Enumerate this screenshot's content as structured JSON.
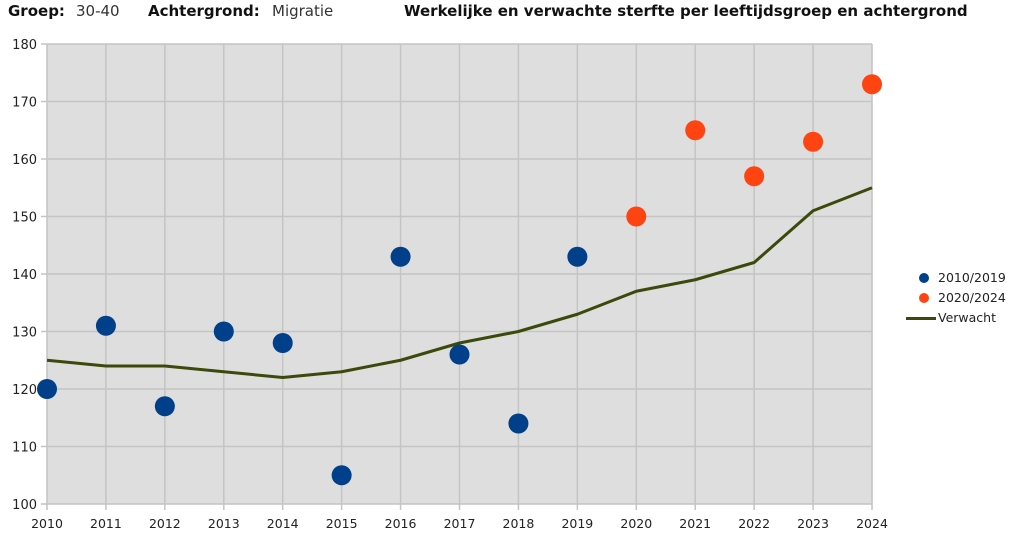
{
  "header": {
    "group_label": "Groep:",
    "group_value": "30-40",
    "background_label": "Achtergrond:",
    "background_value": "Migratie",
    "title": "Werkelijke en verwachte sterfte per leeftijdsgroep en achtergrond"
  },
  "colors": {
    "series_2010_2019": "#003F8A",
    "series_2020_2024": "#FF4411",
    "expected_line": "#3B4A0A",
    "plot_background": "#DEDEDE",
    "grid": "#C4C4C4"
  },
  "legend": {
    "items": [
      {
        "label": "2010/2019",
        "type": "dot",
        "color": "#003F8A"
      },
      {
        "label": "2020/2024",
        "type": "dot",
        "color": "#FF4411"
      },
      {
        "label": "Verwacht",
        "type": "line",
        "color": "#3B4A0A"
      }
    ]
  },
  "chart_data": {
    "type": "scatter",
    "title": "Werkelijke en verwachte sterfte per leeftijdsgroep en achtergrond",
    "subtitle": "Groep: 30-40  Achtergrond: Migratie",
    "xlabel": "",
    "ylabel": "",
    "x": [
      2010,
      2011,
      2012,
      2013,
      2014,
      2015,
      2016,
      2017,
      2018,
      2019,
      2020,
      2021,
      2022,
      2023,
      2024
    ],
    "xlim": [
      2010,
      2024
    ],
    "ylim": [
      100,
      180
    ],
    "yticks": [
      100,
      110,
      120,
      130,
      140,
      150,
      160,
      170,
      180
    ],
    "grid": true,
    "legend_position": "right",
    "series": [
      {
        "name": "2010/2019",
        "type": "scatter",
        "color": "#003F8A",
        "x": [
          2010,
          2011,
          2012,
          2013,
          2014,
          2015,
          2016,
          2017,
          2018,
          2019
        ],
        "values": [
          120,
          131,
          117,
          130,
          128,
          105,
          143,
          126,
          114,
          143
        ]
      },
      {
        "name": "2020/2024",
        "type": "scatter",
        "color": "#FF4411",
        "x": [
          2020,
          2021,
          2022,
          2023,
          2024
        ],
        "values": [
          150,
          165,
          157,
          163,
          173
        ]
      },
      {
        "name": "Verwacht",
        "type": "line",
        "color": "#3B4A0A",
        "x": [
          2010,
          2011,
          2012,
          2013,
          2014,
          2015,
          2016,
          2017,
          2018,
          2019,
          2020,
          2021,
          2022,
          2023,
          2024
        ],
        "values": [
          125,
          124,
          124,
          123,
          122,
          123,
          125,
          128,
          130,
          133,
          137,
          139,
          142,
          151,
          155
        ]
      }
    ]
  }
}
